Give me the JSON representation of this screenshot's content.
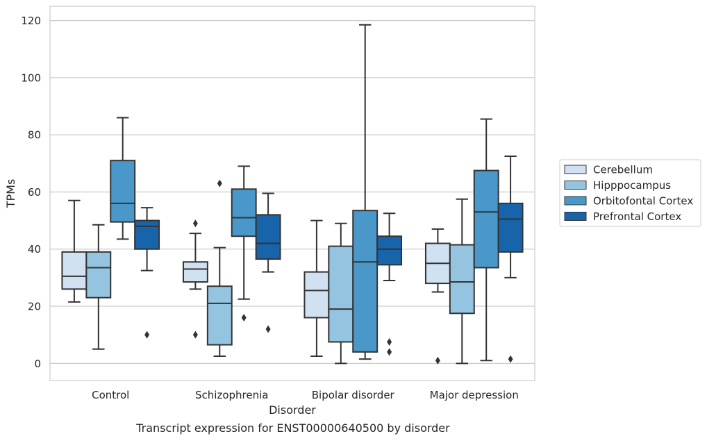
{
  "caption": "Transcript expression for ENST00000640500 by disorder",
  "colors": {
    "Cerebellum": "#d0e1f2",
    "Hipppocampus": "#94c4df",
    "Orbitofontal Cortex": "#4a98c9",
    "Prefrontal Cortex": "#1764ab",
    "line": "#333333",
    "grid": "#cccccc"
  },
  "chart_data": {
    "type": "box",
    "title": "",
    "xlabel": "Disorder",
    "ylabel": "TPMs",
    "ylim": [
      -6,
      125
    ],
    "yticks": [
      0,
      20,
      40,
      60,
      80,
      100,
      120
    ],
    "grid": true,
    "legend_position": "right",
    "categories": [
      "Control",
      "Schizophrenia",
      "Bipolar disorder",
      "Major depression"
    ],
    "series": [
      {
        "name": "Cerebellum",
        "boxes": [
          {
            "whislo": 21.5,
            "q1": 26,
            "med": 30.5,
            "q3": 39,
            "whishi": 57,
            "fliers": []
          },
          {
            "whislo": 26,
            "q1": 28.5,
            "med": 33,
            "q3": 35.5,
            "whishi": 45.5,
            "fliers": [
              49,
              10
            ]
          },
          {
            "whislo": 2.5,
            "q1": 16,
            "med": 25.5,
            "q3": 32,
            "whishi": 50,
            "fliers": []
          },
          {
            "whislo": 25,
            "q1": 28,
            "med": 35,
            "q3": 42,
            "whishi": 47,
            "fliers": [
              1
            ]
          }
        ]
      },
      {
        "name": "Hipppocampus",
        "boxes": [
          {
            "whislo": 5,
            "q1": 23,
            "med": 33.5,
            "q3": 39,
            "whishi": 48.5,
            "fliers": []
          },
          {
            "whislo": 2.5,
            "q1": 6.5,
            "med": 21,
            "q3": 27,
            "whishi": 40.5,
            "fliers": [
              63
            ]
          },
          {
            "whislo": 0,
            "q1": 7.5,
            "med": 19,
            "q3": 41,
            "whishi": 49,
            "fliers": []
          },
          {
            "whislo": 0,
            "q1": 17.5,
            "med": 28.5,
            "q3": 41.5,
            "whishi": 57.5,
            "fliers": []
          }
        ]
      },
      {
        "name": "Orbitofontal Cortex",
        "boxes": [
          {
            "whislo": 43.5,
            "q1": 49.5,
            "med": 56,
            "q3": 71,
            "whishi": 86,
            "fliers": []
          },
          {
            "whislo": 22.5,
            "q1": 44.5,
            "med": 51,
            "q3": 61,
            "whishi": 69,
            "fliers": [
              16
            ]
          },
          {
            "whislo": 1.5,
            "q1": 4,
            "med": 35.5,
            "q3": 53.5,
            "whishi": 118.5,
            "fliers": []
          },
          {
            "whislo": 1,
            "q1": 33.5,
            "med": 53,
            "q3": 67.5,
            "whishi": 85.5,
            "fliers": []
          }
        ]
      },
      {
        "name": "Prefrontal Cortex",
        "boxes": [
          {
            "whislo": 32.5,
            "q1": 40,
            "med": 48,
            "q3": 50,
            "whishi": 54.5,
            "fliers": [
              10
            ]
          },
          {
            "whislo": 32,
            "q1": 36.5,
            "med": 42,
            "q3": 52,
            "whishi": 59.5,
            "fliers": [
              12
            ]
          },
          {
            "whislo": 29,
            "q1": 34.5,
            "med": 40,
            "q3": 44.5,
            "whishi": 52.5,
            "fliers": [
              7.5,
              4
            ]
          },
          {
            "whislo": 30,
            "q1": 39,
            "med": 50.5,
            "q3": 56,
            "whishi": 72.5,
            "fliers": [
              1.5
            ]
          }
        ]
      }
    ]
  }
}
